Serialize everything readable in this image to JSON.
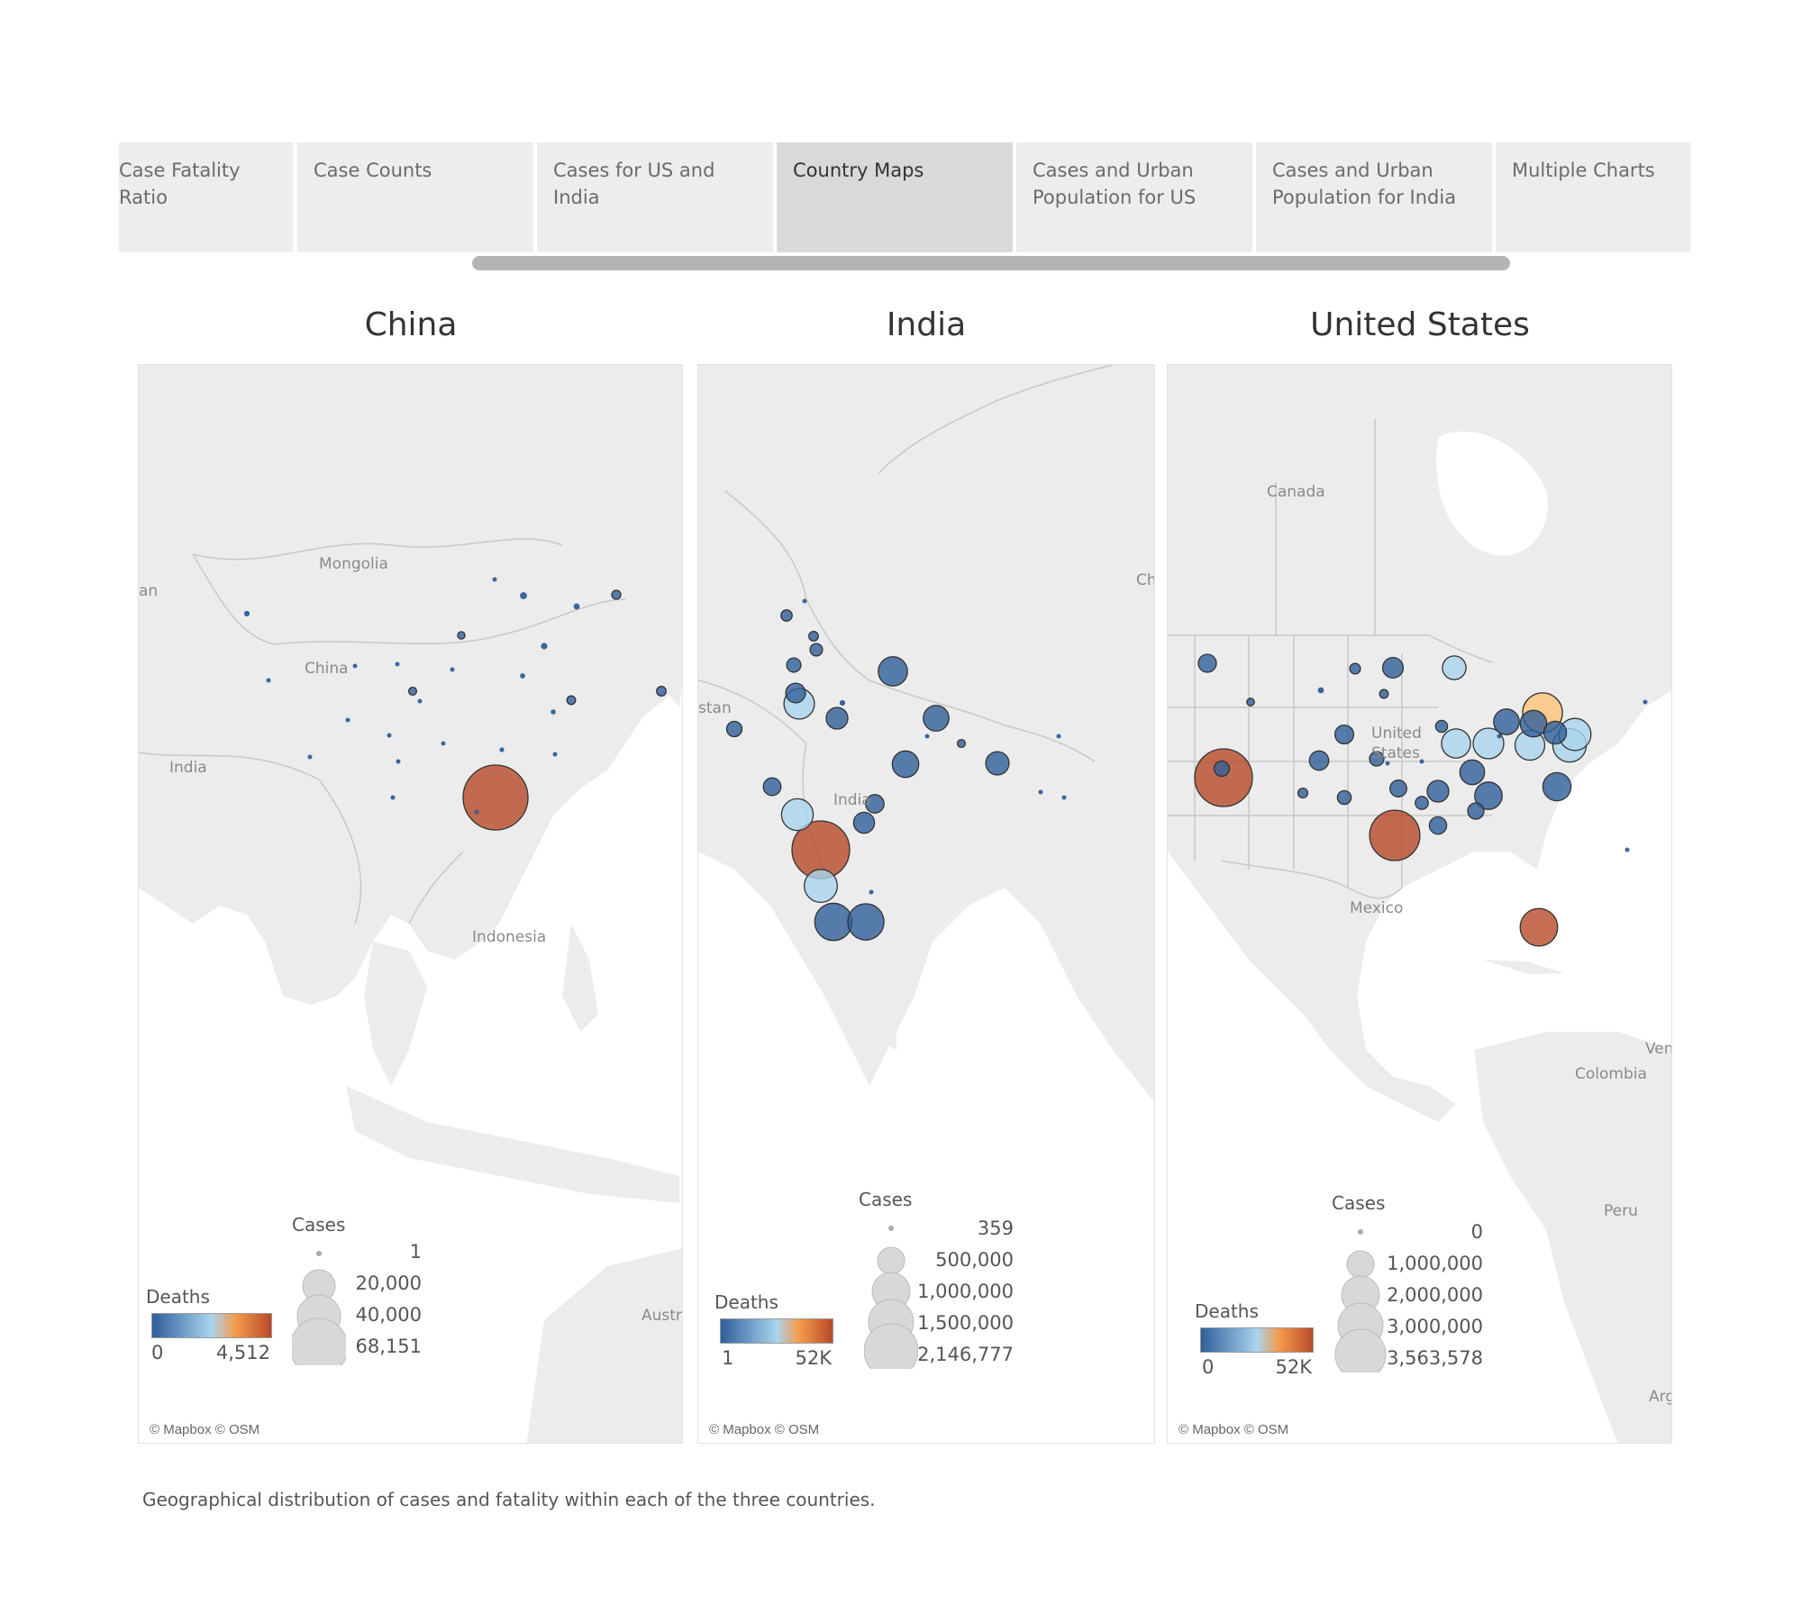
{
  "tabs": [
    {
      "label_line1": "Case Fatality",
      "label_line2": "Ratio",
      "active": false
    },
    {
      "label_line1": "Case Counts",
      "label_line2": "",
      "active": false
    },
    {
      "label_line1": "Cases for US and India",
      "label_line2": "",
      "active": false
    },
    {
      "label_line1": "Country Maps",
      "label_line2": "",
      "active": true
    },
    {
      "label_line1": "Cases and Urban",
      "label_line2": "Population for US",
      "active": false
    },
    {
      "label_line1": "Cases and Urban",
      "label_line2": "Population for India",
      "active": false
    },
    {
      "label_line1": "Multiple Charts",
      "label_line2": "",
      "active": false
    }
  ],
  "colors": {
    "low": "#2f5f9a",
    "mid": "#a9d4ee",
    "high": "#ffc278",
    "top": "#b84a28",
    "land": "#ececec",
    "water": "#ffffff",
    "border": "#c8c8c8"
  },
  "maps": [
    {
      "title": "China",
      "credit": "© Mapbox © OSM",
      "place_labels": [
        "Mongolia",
        "China",
        "India",
        "Indonesia",
        "Austr",
        "an"
      ],
      "size_legend": {
        "title": "Cases",
        "values": [
          "1",
          "20,000",
          "40,000",
          "68,151"
        ]
      },
      "color_legend": {
        "title": "Deaths",
        "min": "0",
        "max": "4,512"
      },
      "points": [
        {
          "cases": 68151,
          "deaths": 4512,
          "color": "top"
        },
        {
          "cases": 1300,
          "deaths": 8,
          "color": "low"
        },
        {
          "cases": 1200,
          "deaths": 5,
          "color": "low"
        },
        {
          "cases": 1500,
          "deaths": 2,
          "color": "low"
        },
        {
          "cases": 1000,
          "deaths": 6,
          "color": "low"
        },
        {
          "cases": 900,
          "deaths": 3,
          "color": "low"
        },
        {
          "cases": 800,
          "deaths": 2,
          "color": "low"
        },
        {
          "cases": 700,
          "deaths": 4,
          "color": "low"
        },
        {
          "cases": 600,
          "deaths": 3,
          "color": "low"
        },
        {
          "cases": 500,
          "deaths": 2,
          "color": "low"
        },
        {
          "cases": 450,
          "deaths": 1,
          "color": "low"
        },
        {
          "cases": 400,
          "deaths": 1,
          "color": "low"
        },
        {
          "cases": 350,
          "deaths": 1,
          "color": "low"
        },
        {
          "cases": 300,
          "deaths": 1,
          "color": "low"
        },
        {
          "cases": 250,
          "deaths": 1,
          "color": "low"
        },
        {
          "cases": 200,
          "deaths": 0,
          "color": "low"
        },
        {
          "cases": 150,
          "deaths": 0,
          "color": "low"
        },
        {
          "cases": 120,
          "deaths": 0,
          "color": "low"
        },
        {
          "cases": 100,
          "deaths": 0,
          "color": "low"
        },
        {
          "cases": 80,
          "deaths": 0,
          "color": "low"
        },
        {
          "cases": 60,
          "deaths": 0,
          "color": "low"
        },
        {
          "cases": 40,
          "deaths": 0,
          "color": "low"
        },
        {
          "cases": 30,
          "deaths": 0,
          "color": "low"
        },
        {
          "cases": 20,
          "deaths": 0,
          "color": "low"
        },
        {
          "cases": 10,
          "deaths": 0,
          "color": "low"
        },
        {
          "cases": 5,
          "deaths": 0,
          "color": "low"
        },
        {
          "cases": 1,
          "deaths": 0,
          "color": "low"
        }
      ]
    },
    {
      "title": "India",
      "credit": "© Mapbox © OSM",
      "place_labels": [
        "India",
        "Ch",
        "stan"
      ],
      "size_legend": {
        "title": "Cases",
        "values": [
          "359",
          "500,000",
          "1,000,000",
          "1,500,000",
          "2,146,777"
        ]
      },
      "color_legend": {
        "title": "Deaths",
        "min": "1",
        "max": "52K"
      },
      "points": [
        {
          "cases": 2146777,
          "deaths": 52000,
          "color": "top"
        },
        {
          "cases": 900000,
          "deaths": 12000,
          "color": "low"
        },
        {
          "cases": 850000,
          "deaths": 9000,
          "color": "low"
        },
        {
          "cases": 700000,
          "deaths": 14000,
          "color": "mid"
        },
        {
          "cases": 650000,
          "deaths": 13000,
          "color": "mid"
        },
        {
          "cases": 600000,
          "deaths": 11000,
          "color": "mid"
        },
        {
          "cases": 550000,
          "deaths": 8000,
          "color": "low"
        },
        {
          "cases": 450000,
          "deaths": 7000,
          "color": "low"
        },
        {
          "cases": 420000,
          "deaths": 6000,
          "color": "low"
        },
        {
          "cases": 350000,
          "deaths": 4000,
          "color": "low"
        },
        {
          "cases": 300000,
          "deaths": 3500,
          "color": "low"
        },
        {
          "cases": 280000,
          "deaths": 3000,
          "color": "low"
        },
        {
          "cases": 250000,
          "deaths": 2500,
          "color": "low"
        },
        {
          "cases": 220000,
          "deaths": 2000,
          "color": "low"
        },
        {
          "cases": 200000,
          "deaths": 1800,
          "color": "low"
        },
        {
          "cases": 150000,
          "deaths": 1500,
          "color": "low"
        },
        {
          "cases": 130000,
          "deaths": 1200,
          "color": "low"
        },
        {
          "cases": 100000,
          "deaths": 1000,
          "color": "low"
        },
        {
          "cases": 80000,
          "deaths": 800,
          "color": "low"
        },
        {
          "cases": 60000,
          "deaths": 600,
          "color": "low"
        },
        {
          "cases": 40000,
          "deaths": 300,
          "color": "low"
        },
        {
          "cases": 20000,
          "deaths": 150,
          "color": "low"
        },
        {
          "cases": 10000,
          "deaths": 60,
          "color": "low"
        },
        {
          "cases": 6000,
          "deaths": 40,
          "color": "low"
        },
        {
          "cases": 3000,
          "deaths": 20,
          "color": "low"
        },
        {
          "cases": 1500,
          "deaths": 10,
          "color": "low"
        },
        {
          "cases": 800,
          "deaths": 5,
          "color": "low"
        },
        {
          "cases": 359,
          "deaths": 1,
          "color": "low"
        }
      ]
    },
    {
      "title": "United States",
      "credit": "© Mapbox © OSM",
      "place_labels": [
        "Canada",
        "United",
        "States",
        "Mexico",
        "Colombia",
        "Peru",
        "Ven",
        "Arg"
      ],
      "size_legend": {
        "title": "Cases",
        "values": [
          "0",
          "1,000,000",
          "2,000,000",
          "3,000,000",
          "3,563,578"
        ]
      },
      "color_legend": {
        "title": "Deaths",
        "min": "0",
        "max": "52K"
      },
      "points": [
        {
          "cases": 3563578,
          "deaths": 52000,
          "color": "top"
        },
        {
          "cases": 2700000,
          "deaths": 44000,
          "color": "top"
        },
        {
          "cases": 1700000,
          "deaths": 30000,
          "color": "high"
        },
        {
          "cases": 1500000,
          "deaths": 50000,
          "color": "top"
        },
        {
          "cases": 1200000,
          "deaths": 24000,
          "color": "mid"
        },
        {
          "cases": 1100000,
          "deaths": 22000,
          "color": "mid"
        },
        {
          "cases": 1000000,
          "deaths": 20000,
          "color": "mid"
        },
        {
          "cases": 950000,
          "deaths": 19000,
          "color": "mid"
        },
        {
          "cases": 900000,
          "deaths": 18000,
          "color": "mid"
        },
        {
          "cases": 850000,
          "deaths": 12000,
          "color": "low"
        },
        {
          "cases": 800000,
          "deaths": 11000,
          "color": "low"
        },
        {
          "cases": 750000,
          "deaths": 10000,
          "color": "low"
        },
        {
          "cases": 700000,
          "deaths": 9000,
          "color": "low"
        },
        {
          "cases": 650000,
          "deaths": 8000,
          "color": "low"
        },
        {
          "cases": 600000,
          "deaths": 14000,
          "color": "mid"
        },
        {
          "cases": 550000,
          "deaths": 7000,
          "color": "low"
        },
        {
          "cases": 500000,
          "deaths": 6000,
          "color": "low"
        },
        {
          "cases": 450000,
          "deaths": 5000,
          "color": "low"
        },
        {
          "cases": 400000,
          "deaths": 4500,
          "color": "low"
        },
        {
          "cases": 380000,
          "deaths": 4000,
          "color": "low"
        },
        {
          "cases": 350000,
          "deaths": 3500,
          "color": "low"
        },
        {
          "cases": 320000,
          "deaths": 3000,
          "color": "low"
        },
        {
          "cases": 300000,
          "deaths": 2800,
          "color": "low"
        },
        {
          "cases": 280000,
          "deaths": 2500,
          "color": "low"
        },
        {
          "cases": 250000,
          "deaths": 2200,
          "color": "low"
        },
        {
          "cases": 220000,
          "deaths": 2000,
          "color": "low"
        },
        {
          "cases": 200000,
          "deaths": 1800,
          "color": "low"
        },
        {
          "cases": 180000,
          "deaths": 1600,
          "color": "low"
        },
        {
          "cases": 150000,
          "deaths": 1400,
          "color": "low"
        },
        {
          "cases": 120000,
          "deaths": 1200,
          "color": "low"
        },
        {
          "cases": 100000,
          "deaths": 1000,
          "color": "low"
        },
        {
          "cases": 80000,
          "deaths": 800,
          "color": "low"
        },
        {
          "cases": 60000,
          "deaths": 600,
          "color": "low"
        },
        {
          "cases": 40000,
          "deaths": 400,
          "color": "low"
        },
        {
          "cases": 20000,
          "deaths": 200,
          "color": "low"
        },
        {
          "cases": 10000,
          "deaths": 100,
          "color": "low"
        },
        {
          "cases": 5000,
          "deaths": 50,
          "color": "low"
        },
        {
          "cases": 1000,
          "deaths": 10,
          "color": "low"
        },
        {
          "cases": 0,
          "deaths": 0,
          "color": "low"
        }
      ]
    }
  ],
  "caption": "Geographical distribution of cases and fatality within each of the three countries."
}
